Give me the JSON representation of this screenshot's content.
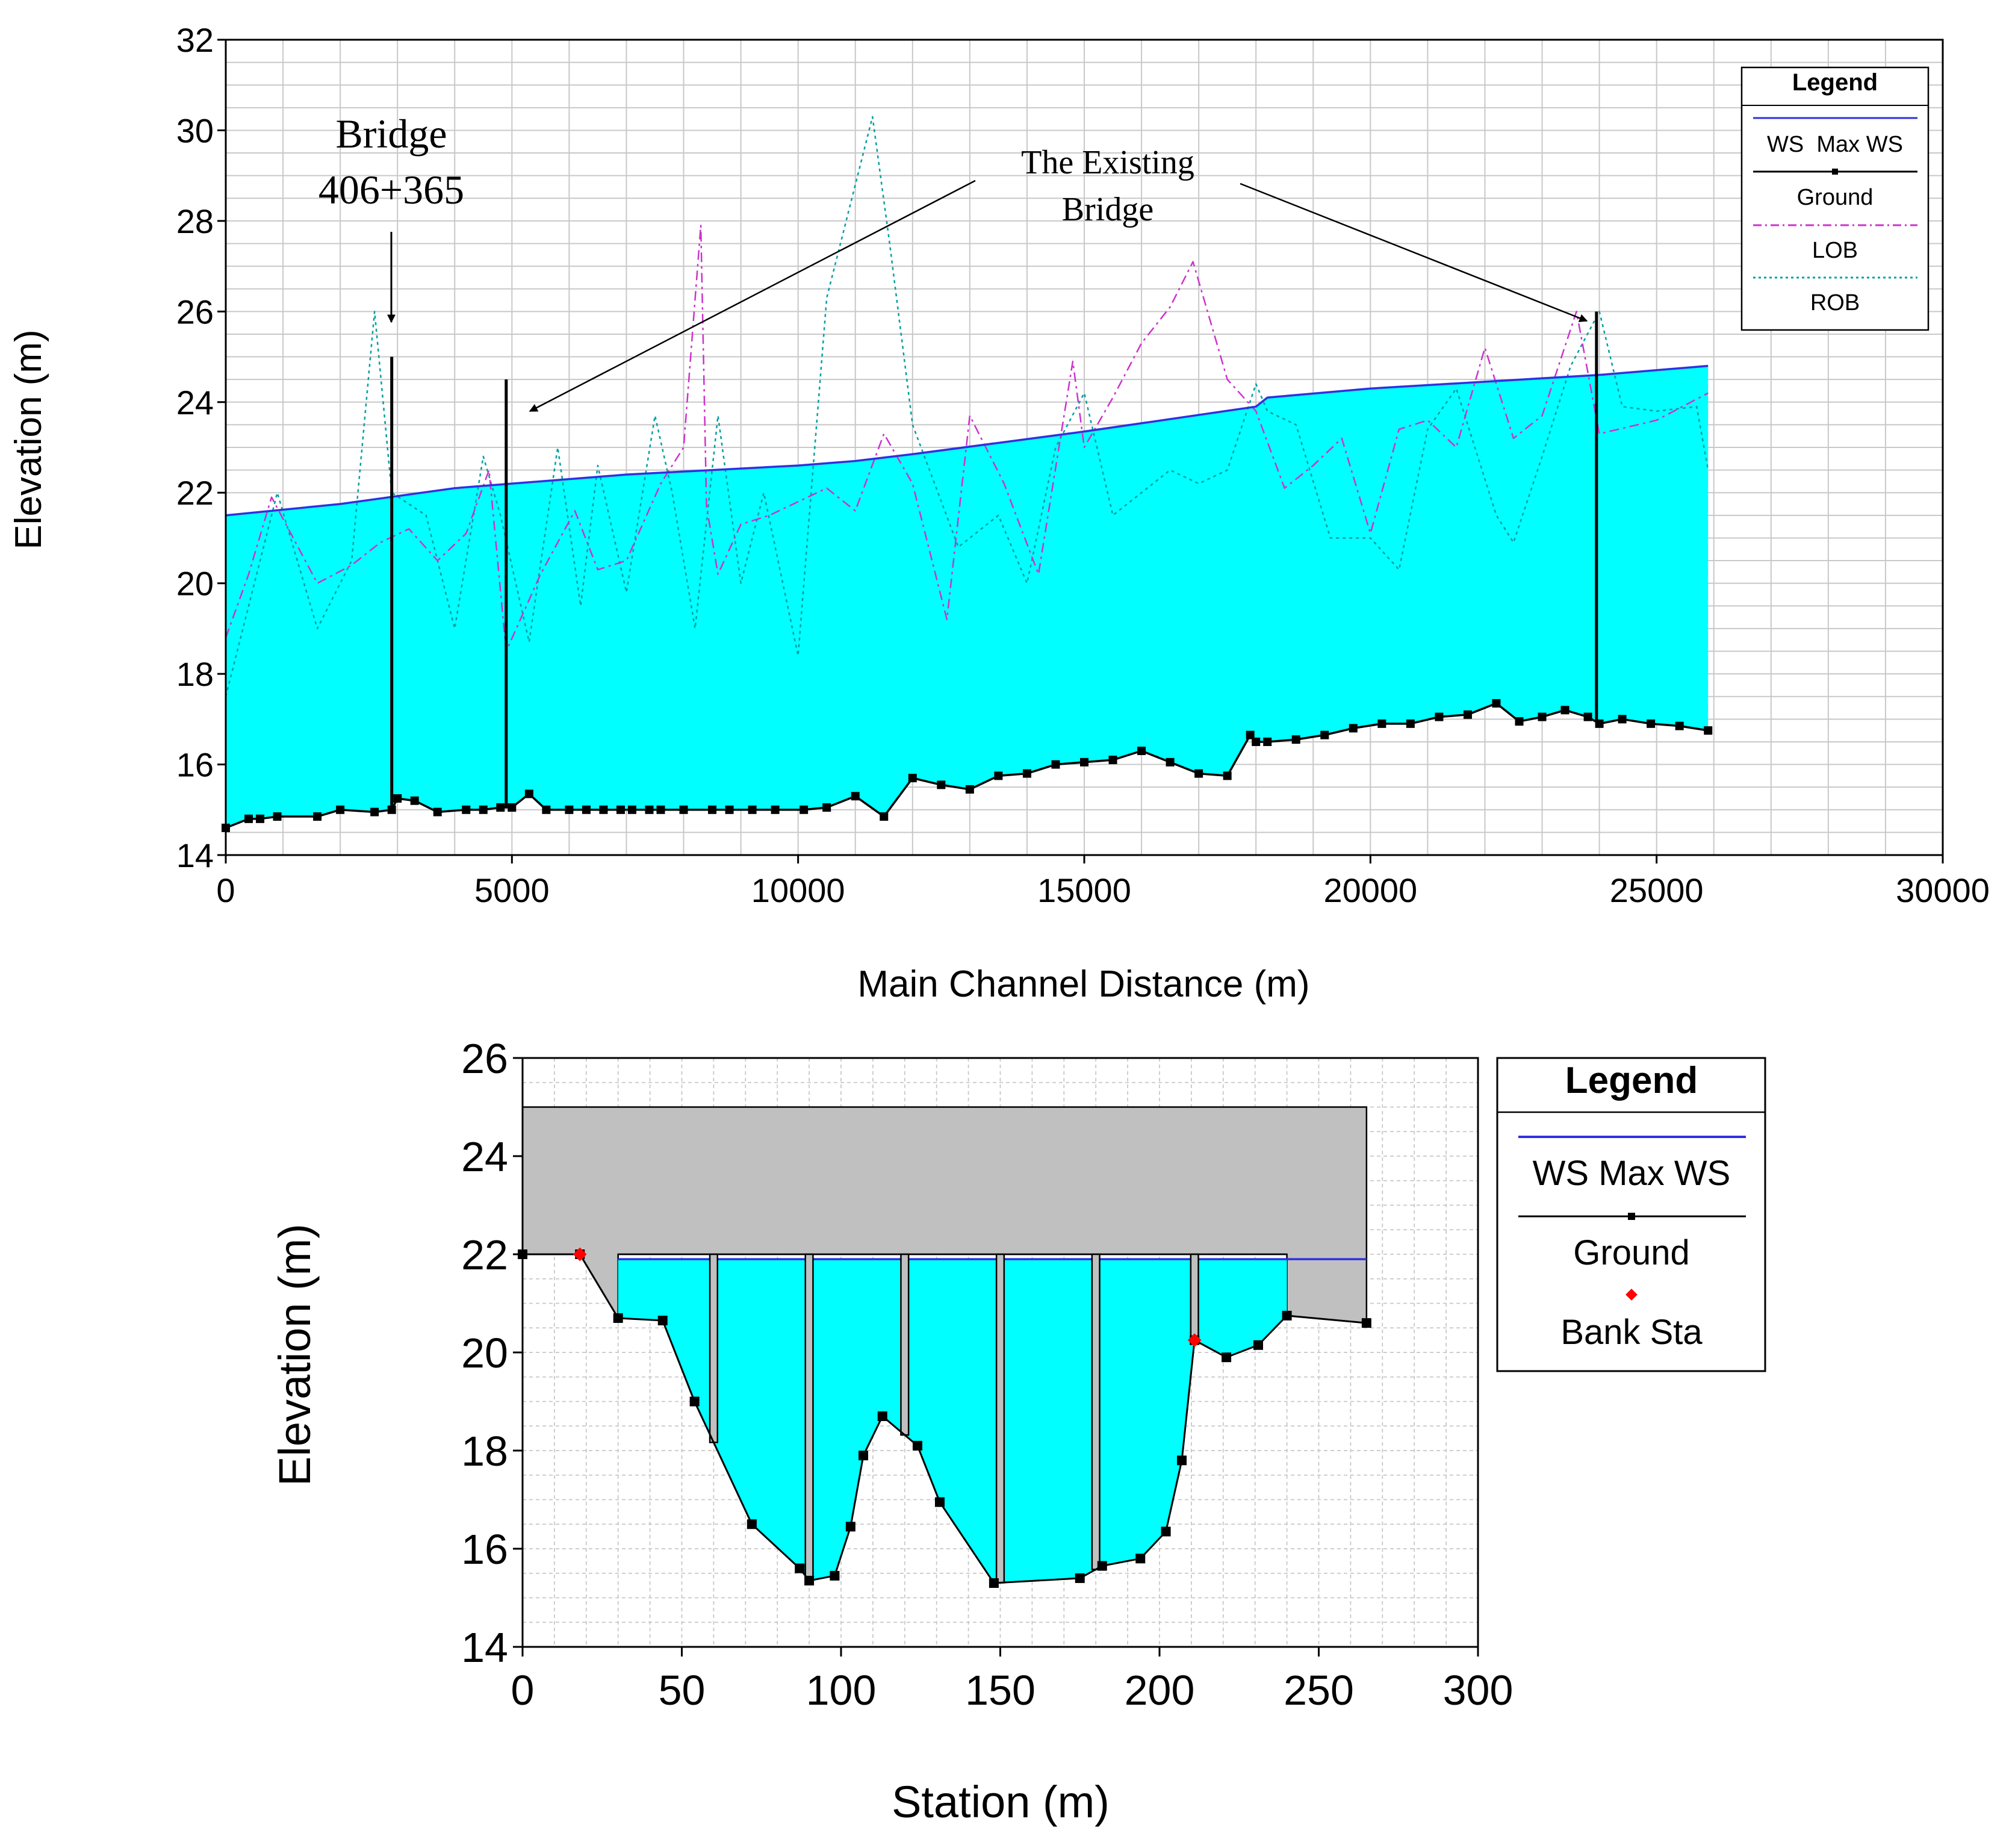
{
  "chart_data": [
    {
      "type": "line",
      "title": "",
      "xlabel": "Main Channel Distance (m)",
      "ylabel": "Elevation (m)",
      "xlim": [
        0,
        30000
      ],
      "ylim": [
        14,
        32
      ],
      "xticks": [
        "0",
        "5000",
        "10000",
        "15000",
        "20000",
        "25000",
        "30000"
      ],
      "yticks": [
        "14",
        "16",
        "18",
        "20",
        "22",
        "24",
        "26",
        "28",
        "30",
        "32"
      ],
      "grid": true,
      "legend": {
        "title": "Legend",
        "placement": "top-right",
        "entries": [
          "WS  Max WS",
          "Ground",
          "LOB",
          "ROB"
        ]
      },
      "colors": {
        "ws": "#3030e0",
        "fill": "#00ffff",
        "ground": "#000000",
        "lob": "#cc33cc",
        "rob": "#00a0a0",
        "grid": "#c8c8c8"
      },
      "series": [
        {
          "name": "WS Max WS",
          "x": [
            0,
            2000,
            4000,
            5000,
            7000,
            10000,
            11000,
            12000,
            15000,
            18000,
            18200,
            20000,
            24000,
            25900
          ],
          "y": [
            21.5,
            21.75,
            22.1,
            22.2,
            22.4,
            22.6,
            22.7,
            22.85,
            23.35,
            23.9,
            24.1,
            24.3,
            24.6,
            24.8
          ]
        },
        {
          "name": "Ground",
          "x": [
            0,
            400,
            600,
            900,
            1600,
            2000,
            2600,
            2900,
            3000,
            3300,
            3700,
            4200,
            4500,
            4800,
            5000,
            5300,
            5600,
            6000,
            6300,
            6600,
            6900,
            7100,
            7400,
            7600,
            8000,
            8500,
            8800,
            9200,
            9600,
            10100,
            10500,
            11000,
            11500,
            12000,
            12500,
            13000,
            13500,
            14000,
            14500,
            15000,
            15500,
            16000,
            16500,
            17000,
            17500,
            17900,
            18000,
            18200,
            18700,
            19200,
            19700,
            20200,
            20700,
            21200,
            21700,
            22200,
            22600,
            23000,
            23400,
            23800,
            24000,
            24400,
            24900,
            25400,
            25900
          ],
          "y": [
            14.6,
            14.8,
            14.8,
            14.85,
            14.85,
            15.0,
            14.95,
            15.0,
            15.25,
            15.2,
            14.95,
            15.0,
            15.0,
            15.05,
            15.05,
            15.35,
            15.0,
            15.0,
            15.0,
            15.0,
            15.0,
            15.0,
            15.0,
            15.0,
            15.0,
            15.0,
            15.0,
            15.0,
            15.0,
            15.0,
            15.05,
            15.3,
            14.85,
            15.7,
            15.55,
            15.45,
            15.75,
            15.8,
            16.0,
            16.05,
            16.1,
            16.3,
            16.05,
            15.8,
            15.75,
            16.65,
            16.5,
            16.5,
            16.55,
            16.65,
            16.8,
            16.9,
            16.9,
            17.05,
            17.1,
            17.35,
            16.95,
            17.05,
            17.2,
            17.05,
            16.9,
            17.0,
            16.9,
            16.85,
            16.75
          ]
        },
        {
          "name": "LOB",
          "x": [
            0,
            400,
            800,
            1600,
            2200,
            2700,
            3200,
            3700,
            4200,
            4600,
            4900,
            5500,
            6100,
            6500,
            7000,
            7600,
            8000,
            8300,
            8400,
            8600,
            9000,
            9500,
            10000,
            10500,
            11000,
            11500,
            12000,
            12600,
            13000,
            13600,
            14200,
            14800,
            15000,
            15500,
            16000,
            16500,
            16700,
            16900,
            17500,
            18000,
            18500,
            19000,
            19500,
            20000,
            20500,
            21000,
            21500,
            22000,
            22500,
            23000,
            23600,
            24000,
            25000,
            25900
          ],
          "y": [
            18.8,
            20.2,
            21.9,
            20.0,
            20.4,
            20.9,
            21.2,
            20.5,
            21.1,
            22.5,
            18.5,
            20.2,
            21.6,
            20.3,
            20.5,
            22.2,
            23.0,
            27.9,
            21.7,
            20.2,
            21.3,
            21.5,
            21.8,
            22.1,
            21.6,
            23.3,
            22.2,
            19.2,
            23.7,
            22.2,
            20.2,
            24.9,
            23.0,
            24.1,
            25.3,
            26.1,
            26.6,
            27.1,
            24.5,
            23.8,
            22.1,
            22.6,
            23.2,
            21.1,
            23.4,
            23.6,
            23.0,
            25.2,
            23.2,
            23.7,
            26.0,
            23.3,
            23.6,
            24.2
          ]
        },
        {
          "name": "ROB",
          "x": [
            0,
            400,
            900,
            1600,
            2200,
            2600,
            2900,
            3500,
            4000,
            4500,
            4800,
            5300,
            5800,
            6200,
            6500,
            7000,
            7500,
            7800,
            8200,
            8600,
            9000,
            9400,
            10000,
            10500,
            11300,
            11600,
            12000,
            12800,
            13500,
            14000,
            14500,
            15000,
            15500,
            16000,
            16500,
            17000,
            17500,
            18000,
            18200,
            18700,
            19300,
            20000,
            20500,
            21000,
            21500,
            22200,
            22500,
            23000,
            23500,
            24000,
            24400,
            25000,
            25700,
            25900
          ],
          "y": [
            17.5,
            19.5,
            22.0,
            19.0,
            20.5,
            26.0,
            22.0,
            21.5,
            19.0,
            22.8,
            21.5,
            18.7,
            23.0,
            19.5,
            22.6,
            19.8,
            23.7,
            22.0,
            19.0,
            23.7,
            20.0,
            22.0,
            18.4,
            26.3,
            30.3,
            27.5,
            23.5,
            20.8,
            21.5,
            20.0,
            23.0,
            24.2,
            21.5,
            22.0,
            22.5,
            22.2,
            22.5,
            24.4,
            23.8,
            23.5,
            21.0,
            21.0,
            20.3,
            23.4,
            24.3,
            21.5,
            20.9,
            22.8,
            24.8,
            26.0,
            23.9,
            23.8,
            23.9,
            22.5
          ]
        }
      ],
      "bridges": [
        {
          "x": 2900,
          "y_top": 25.0
        },
        {
          "x": 4900,
          "y_top": 24.5
        },
        {
          "x": 23950,
          "y_top": 26.0
        }
      ],
      "annotations": [
        {
          "line1": "Bridge",
          "line2": "406+365"
        },
        {
          "line1": "The Existing",
          "line2": "Bridge"
        }
      ]
    },
    {
      "type": "line",
      "title": "",
      "xlabel": "Station (m)",
      "ylabel": "Elevation (m)",
      "xlim": [
        0,
        300
      ],
      "ylim": [
        14,
        26
      ],
      "xticks": [
        "0",
        "50",
        "100",
        "150",
        "200",
        "250",
        "300"
      ],
      "yticks": [
        "14",
        "16",
        "18",
        "20",
        "22",
        "24",
        "26"
      ],
      "grid": true,
      "legend": {
        "title": "Legend",
        "placement": "right",
        "entries": [
          "WS Max WS",
          "Ground",
          "Bank Sta"
        ]
      },
      "colors": {
        "ws": "#3030e0",
        "fill": "#00ffff",
        "ground": "#000000",
        "deck": "#c0c0c0",
        "bank": "#ff0000"
      },
      "water_surface": 21.9,
      "bridge_deck": {
        "x_left": 0,
        "x_right": 265,
        "top": 25.0,
        "low_chord": 22.0,
        "low_x_left": 30,
        "low_x_right": 240
      },
      "ground": {
        "x": [
          0,
          18,
          30,
          44,
          54,
          72,
          87,
          90,
          98,
          103,
          107,
          113,
          124,
          131,
          148,
          175,
          182,
          194,
          202,
          207,
          211,
          221,
          231,
          240,
          265
        ],
        "y": [
          22.0,
          22.0,
          20.7,
          20.65,
          19.0,
          16.5,
          15.6,
          15.35,
          15.45,
          16.45,
          17.9,
          18.7,
          18.1,
          16.95,
          15.3,
          15.4,
          15.65,
          15.8,
          16.35,
          17.8,
          20.25,
          19.9,
          20.15,
          20.75,
          20.6
        ]
      },
      "bank_stations": [
        {
          "x": 18,
          "y": 22.0
        },
        {
          "x": 211,
          "y": 20.25
        }
      ],
      "piers": [
        60,
        90,
        120,
        150,
        180,
        211
      ]
    }
  ]
}
